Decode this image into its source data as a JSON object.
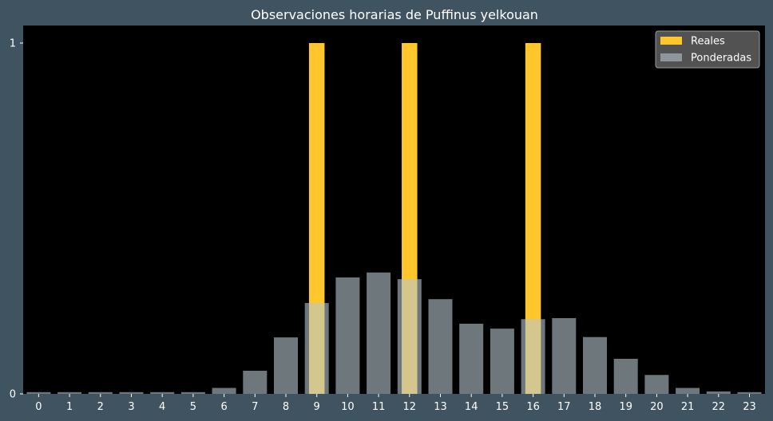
{
  "chart_data": {
    "type": "bar",
    "title": "Observaciones horarias de Puffinus yelkouan",
    "xlabel": "",
    "ylabel": "",
    "categories": [
      "0",
      "1",
      "2",
      "3",
      "4",
      "5",
      "6",
      "7",
      "8",
      "9",
      "10",
      "11",
      "12",
      "13",
      "14",
      "15",
      "16",
      "17",
      "18",
      "19",
      "20",
      "21",
      "22",
      "23"
    ],
    "ylim": [
      0,
      1.05
    ],
    "yticks": [
      0,
      1
    ],
    "series": [
      {
        "name": "Reales",
        "color": "#ffc72c",
        "values": [
          0,
          0,
          0,
          0,
          0,
          0,
          0,
          0,
          0,
          1,
          0,
          0,
          1,
          0,
          0,
          0,
          1,
          0,
          0,
          0,
          0,
          0,
          0,
          0
        ]
      },
      {
        "name": "Ponderadas",
        "color": "#b5c7cf",
        "opacity": 0.6,
        "values": [
          0.005,
          0.005,
          0.005,
          0.005,
          0.005,
          0.005,
          0.017,
          0.066,
          0.161,
          0.259,
          0.332,
          0.346,
          0.327,
          0.27,
          0.2,
          0.186,
          0.213,
          0.216,
          0.162,
          0.1,
          0.054,
          0.017,
          0.007,
          0.005
        ]
      }
    ],
    "legend": "top-right",
    "grid": false,
    "background": "#000000",
    "figure_background": "#3f5360"
  }
}
